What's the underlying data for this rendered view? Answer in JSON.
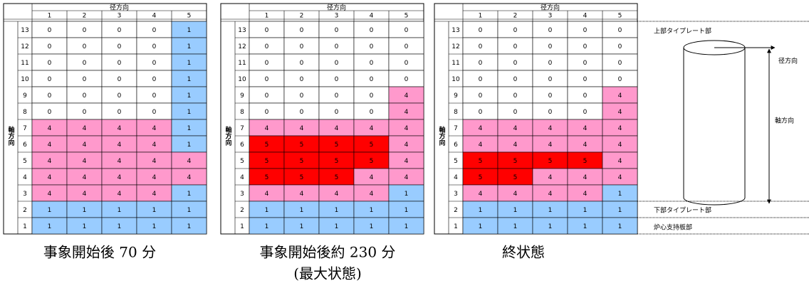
{
  "cell_colors": {
    "0": "#ffffff",
    "1": "#99ccff",
    "4": "#ff99cc",
    "5": "#ff0000"
  },
  "tables": [
    {
      "title": "径方向",
      "columns": [
        "1",
        "2",
        "3",
        "4",
        "5"
      ],
      "side_label": "軸方向",
      "row_labels": [
        "13",
        "12",
        "11",
        "10",
        "9",
        "8",
        "7",
        "6",
        "5",
        "4",
        "3",
        "2",
        "1"
      ],
      "rows": [
        [
          0,
          0,
          0,
          0,
          1
        ],
        [
          0,
          0,
          0,
          0,
          1
        ],
        [
          0,
          0,
          0,
          0,
          1
        ],
        [
          0,
          0,
          0,
          0,
          1
        ],
        [
          0,
          0,
          0,
          0,
          1
        ],
        [
          0,
          0,
          0,
          0,
          1
        ],
        [
          4,
          4,
          4,
          4,
          1
        ],
        [
          4,
          4,
          4,
          4,
          1
        ],
        [
          4,
          4,
          4,
          4,
          4
        ],
        [
          4,
          4,
          4,
          4,
          4
        ],
        [
          4,
          4,
          4,
          4,
          1
        ],
        [
          1,
          1,
          1,
          1,
          1
        ],
        [
          1,
          1,
          1,
          1,
          1
        ]
      ],
      "caption": [
        "事象開始後 70 分"
      ]
    },
    {
      "title": "径方向",
      "columns": [
        "1",
        "2",
        "3",
        "4",
        "5"
      ],
      "side_label": "軸方向",
      "row_labels": [
        "13",
        "12",
        "11",
        "10",
        "9",
        "8",
        "7",
        "6",
        "5",
        "4",
        "3",
        "2",
        "1"
      ],
      "rows": [
        [
          0,
          0,
          0,
          0,
          0
        ],
        [
          0,
          0,
          0,
          0,
          0
        ],
        [
          0,
          0,
          0,
          0,
          0
        ],
        [
          0,
          0,
          0,
          0,
          0
        ],
        [
          0,
          0,
          0,
          0,
          4
        ],
        [
          0,
          0,
          0,
          0,
          4
        ],
        [
          4,
          4,
          4,
          4,
          4
        ],
        [
          5,
          5,
          5,
          5,
          4
        ],
        [
          5,
          5,
          5,
          5,
          4
        ],
        [
          5,
          5,
          5,
          4,
          4
        ],
        [
          4,
          4,
          4,
          4,
          1
        ],
        [
          1,
          1,
          1,
          1,
          1
        ],
        [
          1,
          1,
          1,
          1,
          1
        ]
      ],
      "caption": [
        "事象開始後約 230 分",
        "(最大状態)"
      ]
    },
    {
      "title": "径方向",
      "columns": [
        "1",
        "2",
        "3",
        "4",
        "5"
      ],
      "side_label": "軸方向",
      "row_labels": [
        "13",
        "12",
        "11",
        "10",
        "9",
        "8",
        "7",
        "6",
        "5",
        "4",
        "3",
        "2",
        "1"
      ],
      "rows": [
        [
          0,
          0,
          0,
          0,
          0
        ],
        [
          0,
          0,
          0,
          0,
          0
        ],
        [
          0,
          0,
          0,
          0,
          0
        ],
        [
          0,
          0,
          0,
          0,
          0
        ],
        [
          0,
          0,
          0,
          0,
          4
        ],
        [
          0,
          0,
          0,
          0,
          4
        ],
        [
          4,
          4,
          4,
          4,
          4
        ],
        [
          4,
          4,
          4,
          4,
          4
        ],
        [
          5,
          5,
          5,
          5,
          4
        ],
        [
          5,
          5,
          4,
          4,
          4
        ],
        [
          4,
          4,
          4,
          4,
          1
        ],
        [
          1,
          1,
          1,
          1,
          1
        ],
        [
          1,
          1,
          1,
          1,
          1
        ]
      ],
      "caption": [
        "終状態"
      ]
    }
  ],
  "diagram": {
    "upper": "上部タイプレート部",
    "radial": "径方向",
    "axial": "軸方向",
    "lower": "下部タイプレート部",
    "support": "炉心支持板部"
  }
}
